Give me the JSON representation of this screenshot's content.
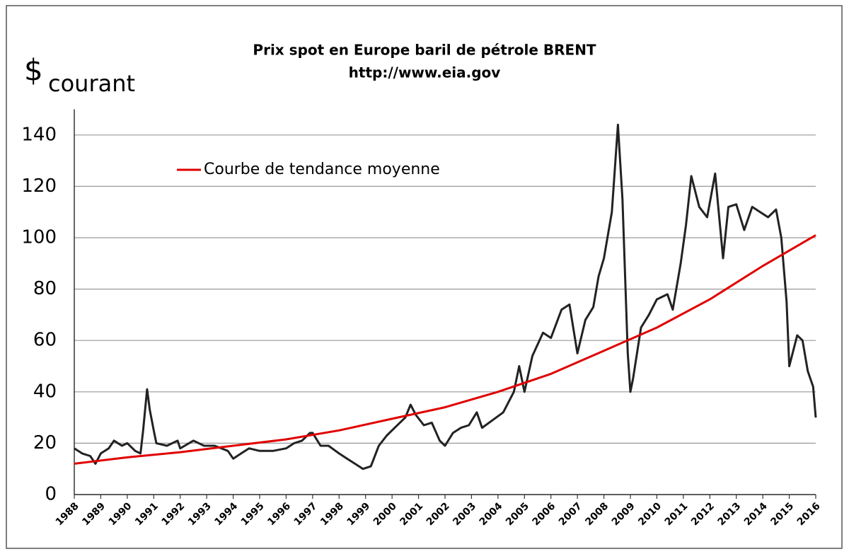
{
  "chart_data": {
    "type": "line",
    "title": "Prix spot en Europe baril de pétrole BRENT",
    "subtitle": "http://www.eia.gov",
    "y_unit": "$",
    "y_unit_sub": "courant",
    "xlim": [
      1988,
      2016
    ],
    "xticks": [
      1988,
      1989,
      1990,
      1991,
      1992,
      1993,
      1994,
      1995,
      1996,
      1997,
      1998,
      1999,
      2000,
      2001,
      2002,
      2003,
      2004,
      2005,
      2006,
      2007,
      2008,
      2009,
      2010,
      2011,
      2012,
      2013,
      2014,
      2015,
      2016
    ],
    "ylim": [
      0,
      150
    ],
    "yticks": [
      0,
      20,
      40,
      60,
      80,
      100,
      120,
      140
    ],
    "grid": true,
    "legend": "top-left",
    "series": [
      {
        "color": "#222222",
        "x": [
          1988.0,
          1988.3,
          1988.6,
          1988.8,
          1989.0,
          1989.3,
          1989.5,
          1989.8,
          1990.0,
          1990.3,
          1990.5,
          1990.6,
          1990.75,
          1990.85,
          1991.0,
          1991.1,
          1991.5,
          1991.9,
          1992.0,
          1992.5,
          1992.9,
          1993.3,
          1993.8,
          1994.0,
          1994.3,
          1994.6,
          1995.0,
          1995.5,
          1996.0,
          1996.3,
          1996.6,
          1996.9,
          1997.0,
          1997.3,
          1997.6,
          1998.0,
          1998.3,
          1998.6,
          1998.9,
          1999.2,
          1999.5,
          1999.8,
          2000.1,
          2000.5,
          2000.7,
          2000.9,
          2001.2,
          2001.5,
          2001.8,
          2002.0,
          2002.3,
          2002.6,
          2002.9,
          2003.2,
          2003.4,
          2003.8,
          2004.2,
          2004.6,
          2004.8,
          2005.0,
          2005.3,
          2005.7,
          2006.0,
          2006.4,
          2006.7,
          2007.0,
          2007.3,
          2007.6,
          2007.8,
          2008.0,
          2008.3,
          2008.53,
          2008.7,
          2008.9,
          2009.0,
          2009.1,
          2009.4,
          2009.7,
          2010.0,
          2010.4,
          2010.6,
          2010.9,
          2011.1,
          2011.3,
          2011.6,
          2011.9,
          2012.2,
          2012.5,
          2012.7,
          2013.0,
          2013.3,
          2013.6,
          2013.9,
          2014.2,
          2014.5,
          2014.7,
          2014.9,
          2015.0,
          2015.3,
          2015.5,
          2015.7,
          2015.9,
          2016.0
        ],
        "values": [
          18,
          16,
          15,
          12,
          16,
          18,
          21,
          19,
          20,
          17,
          16,
          25,
          41,
          33,
          25,
          20,
          19,
          21,
          18,
          21,
          19,
          19,
          17,
          14,
          16,
          18,
          17,
          17,
          18,
          20,
          21,
          24,
          24,
          19,
          19,
          16,
          14,
          12,
          10,
          11,
          19,
          23,
          26,
          30,
          35,
          31,
          27,
          28,
          21,
          19,
          24,
          26,
          27,
          32,
          26,
          29,
          32,
          40,
          50,
          40,
          54,
          63,
          61,
          72,
          74,
          55,
          68,
          73,
          85,
          92,
          110,
          144,
          115,
          55,
          40,
          45,
          65,
          70,
          76,
          78,
          72,
          90,
          105,
          124,
          112,
          108,
          125,
          92,
          112,
          113,
          103,
          112,
          110,
          108,
          111,
          100,
          75,
          50,
          62,
          60,
          48,
          42,
          30
        ]
      },
      {
        "name": "Courbe de tendance moyenne",
        "color": "#e00000",
        "x": [
          1988,
          1990,
          1992,
          1994,
          1996,
          1998,
          2000,
          2002,
          2004,
          2006,
          2008,
          2010,
          2012,
          2014,
          2016
        ],
        "values": [
          12,
          14.5,
          16.5,
          19,
          21.5,
          25,
          29.5,
          34,
          40,
          47,
          56,
          65,
          76,
          89,
          101
        ]
      }
    ]
  }
}
